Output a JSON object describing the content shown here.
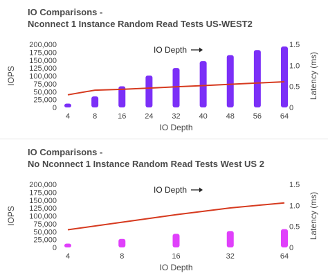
{
  "chart_data": [
    {
      "type": "bar",
      "title_line1": "IO Comparisons -",
      "title_line2": "Nconnect 1 Instance Random Read Tests US-WEST2",
      "xlabel": "IO Depth",
      "ylabel": "IOPS",
      "y2label": "Latency (ms)",
      "annotation": "IO Depth",
      "categories": [
        "4",
        "8",
        "16",
        "24",
        "32",
        "40",
        "48",
        "56",
        "64"
      ],
      "ylim": [
        0,
        200000
      ],
      "yticks": [
        "0",
        "25,000",
        "50,000",
        "75,000",
        "100,000",
        "125,000",
        "150,000",
        "175,000",
        "200,000"
      ],
      "y2lim": [
        0,
        1.5
      ],
      "y2ticks": [
        "0",
        "0.5",
        "1.0",
        "1.5"
      ],
      "series": [
        {
          "values": [
            12000,
            35000,
            67000,
            101000,
            125000,
            147000,
            166000,
            182000,
            193000
          ],
          "kind": "bar",
          "color": "#7b2ff7"
        },
        {
          "values": [
            0.3,
            0.41,
            0.43,
            0.46,
            0.49,
            0.52,
            0.55,
            0.58,
            0.61
          ],
          "kind": "line",
          "axis": "y2",
          "color": "#d63a1f"
        }
      ]
    },
    {
      "type": "bar",
      "title_line1": "IO Comparisons -",
      "title_line2": "No Nconnect 1 Instance Random Read Tests West US 2",
      "xlabel": "IO Depth",
      "ylabel": "IOPS",
      "y2label": "Latency (ms)",
      "annotation": "IO Depth",
      "categories": [
        "4",
        "8",
        "16",
        "32",
        "64"
      ],
      "ylim": [
        0,
        200000
      ],
      "yticks": [
        "0",
        "25,000",
        "50,000",
        "75,000",
        "100,000",
        "125,000",
        "150,000",
        "175,000",
        "200,000"
      ],
      "y2lim": [
        0,
        1.5
      ],
      "y2ticks": [
        "0",
        "0.5",
        "1.0",
        "1.5"
      ],
      "series": [
        {
          "values": [
            12000,
            27000,
            43000,
            52000,
            58000
          ],
          "kind": "bar",
          "color": "#e040fb"
        },
        {
          "values": [
            0.42,
            0.6,
            0.78,
            0.94,
            1.06
          ],
          "kind": "line",
          "axis": "y2",
          "color": "#d63a1f"
        }
      ]
    }
  ]
}
